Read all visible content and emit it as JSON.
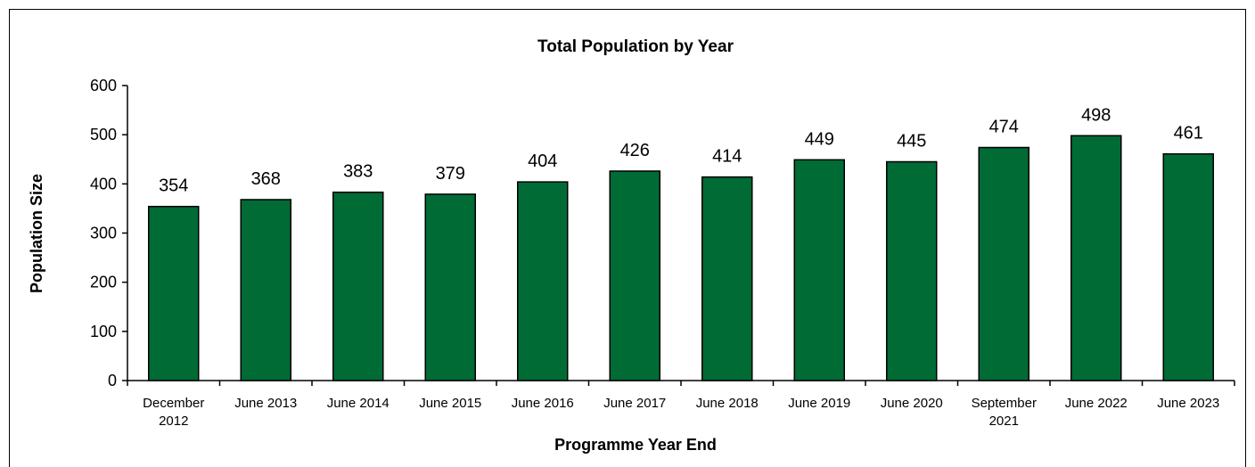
{
  "chart_data": {
    "type": "bar",
    "title": "Total Population by Year",
    "xlabel": "Programme Year End",
    "ylabel": "Population Size",
    "ylim": [
      0,
      600
    ],
    "yticks": [
      "0",
      "100",
      "200",
      "300",
      "400",
      "500",
      "600"
    ],
    "categories": [
      [
        "December",
        "2012"
      ],
      [
        "June 2013"
      ],
      [
        "June 2014"
      ],
      [
        "June 2015"
      ],
      [
        "June 2016"
      ],
      [
        "June 2017"
      ],
      [
        "June 2018"
      ],
      [
        "June 2019"
      ],
      [
        "June 2020"
      ],
      [
        "September",
        "2021"
      ],
      [
        "June 2022"
      ],
      [
        "June 2023"
      ]
    ],
    "values": [
      354,
      368,
      383,
      379,
      404,
      426,
      414,
      449,
      445,
      474,
      498,
      461
    ],
    "bar_color": "#006B35",
    "data_labels": true,
    "grid": false,
    "legend": "none"
  }
}
